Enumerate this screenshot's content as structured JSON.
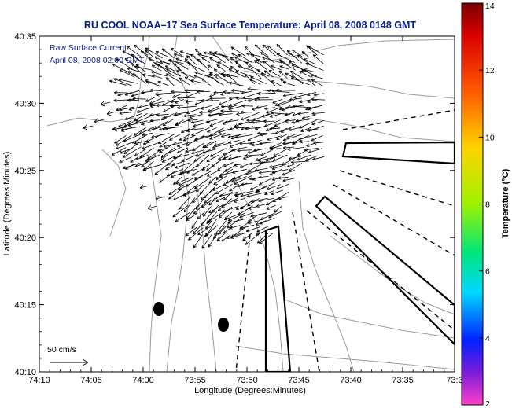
{
  "chart_data": {
    "type": "map",
    "title": "RU COOL  NOAA–17  Sea Surface Temperature:  April 08, 2008 0148 GMT",
    "annotation_line1": "Raw Surface Current:",
    "annotation_line2": "April 08, 2008 02:00 GMT",
    "scale_label": "50 cm/s",
    "xlabel": "Longitude (Degrees:Minutes)",
    "ylabel": "Latitude (Degrees:Minutes)",
    "x_ticks": [
      "74:10",
      "74:05",
      "74:00",
      "73:55",
      "73:50",
      "73:45",
      "73:40",
      "73:35",
      "73:3"
    ],
    "y_ticks": [
      "40:35",
      "40:30",
      "40:25",
      "40:20",
      "40:15",
      "40:10"
    ],
    "xlim_minutes_west": [
      10,
      30
    ],
    "ylim_minutes_north": [
      10,
      35
    ],
    "colorbar": {
      "label": "Temperature (°C)",
      "range": [
        2,
        14
      ],
      "ticks": [
        "14",
        "12",
        "10",
        "8",
        "6",
        "4",
        "2"
      ]
    },
    "colors": {
      "title": "#0b1e8c",
      "annotation": "#0b1e8c",
      "contour": "#9a9a9a",
      "arrow": "#000000"
    }
  }
}
